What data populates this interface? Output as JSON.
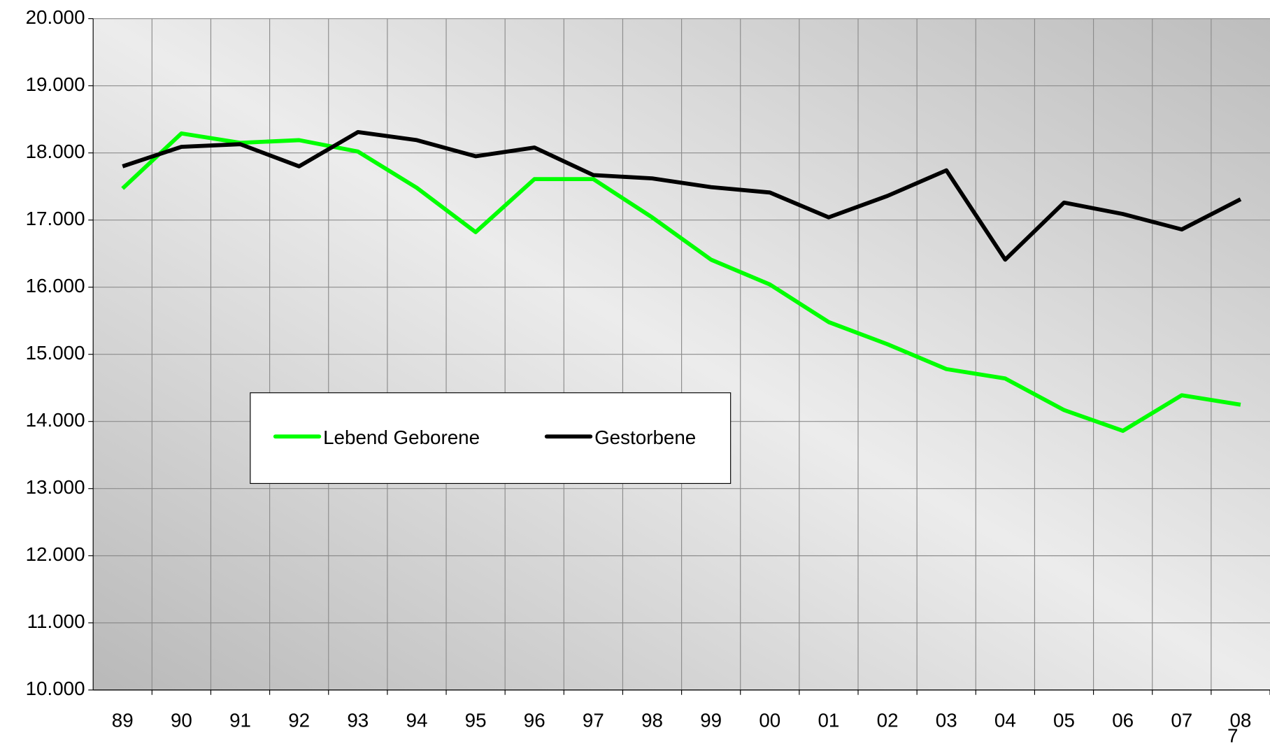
{
  "chart_data": {
    "type": "line",
    "categories": [
      "89",
      "90",
      "91",
      "92",
      "93",
      "94",
      "95",
      "96",
      "97",
      "98",
      "99",
      "00",
      "01",
      "02",
      "03",
      "04",
      "05",
      "06",
      "07",
      "08"
    ],
    "series": [
      {
        "name": "Lebend Geborene",
        "color": "#00ff00",
        "values": [
          17470,
          18290,
          18150,
          18190,
          18020,
          17480,
          16820,
          17610,
          17610,
          17040,
          16410,
          16040,
          15480,
          15150,
          14780,
          14640,
          14170,
          13860,
          14390,
          14250
        ]
      },
      {
        "name": "Gestorbene",
        "color": "#000000",
        "values": [
          17800,
          18090,
          18130,
          17800,
          18310,
          18190,
          17950,
          18080,
          17670,
          17620,
          17490,
          17410,
          17040,
          17360,
          17740,
          16410,
          17260,
          17090,
          16860,
          17310
        ]
      }
    ],
    "ylim": [
      10000,
      20000
    ],
    "yticks": [
      {
        "value": 10000,
        "label": "10.000"
      },
      {
        "value": 11000,
        "label": "11.000"
      },
      {
        "value": 12000,
        "label": "12.000"
      },
      {
        "value": 13000,
        "label": "13.000"
      },
      {
        "value": 14000,
        "label": "14.000"
      },
      {
        "value": 15000,
        "label": "15.000"
      },
      {
        "value": 16000,
        "label": "16.000"
      },
      {
        "value": 17000,
        "label": "17.000"
      },
      {
        "value": 18000,
        "label": "18.000"
      },
      {
        "value": 19000,
        "label": "19.000"
      },
      {
        "value": 20000,
        "label": "20.000"
      }
    ],
    "grid": true,
    "legend": "inside",
    "page_number": "7"
  }
}
